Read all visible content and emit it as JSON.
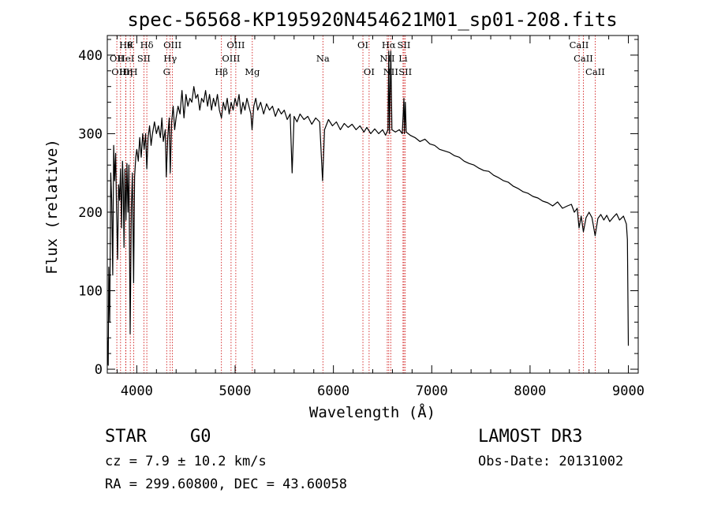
{
  "chart_data": {
    "type": "line",
    "title": "spec-56568-KP195920N454621M01_sp01-208.fits",
    "xlabel": "Wavelength (Å)",
    "ylabel": "Flux (relative)",
    "xlim": [
      3700,
      9100
    ],
    "ylim": [
      -5,
      425
    ],
    "x_ticks": [
      4000,
      5000,
      6000,
      7000,
      8000,
      9000
    ],
    "y_ticks": [
      0,
      100,
      200,
      300,
      400
    ],
    "grid": false,
    "series": [
      {
        "name": "flux",
        "color": "#000000",
        "points": [
          [
            3700,
            40
          ],
          [
            3710,
            5
          ],
          [
            3715,
            130
          ],
          [
            3725,
            60
          ],
          [
            3735,
            250
          ],
          [
            3745,
            215
          ],
          [
            3755,
            120
          ],
          [
            3765,
            285
          ],
          [
            3775,
            240
          ],
          [
            3785,
            275
          ],
          [
            3795,
            200
          ],
          [
            3805,
            140
          ],
          [
            3815,
            235
          ],
          [
            3825,
            215
          ],
          [
            3835,
            255
          ],
          [
            3845,
            180
          ],
          [
            3855,
            265
          ],
          [
            3862,
            235
          ],
          [
            3870,
            155
          ],
          [
            3880,
            255
          ],
          [
            3890,
            190
          ],
          [
            3900,
            262
          ],
          [
            3910,
            200
          ],
          [
            3920,
            260
          ],
          [
            3933,
            45
          ],
          [
            3945,
            205
          ],
          [
            3955,
            250
          ],
          [
            3968,
            110
          ],
          [
            3978,
            245
          ],
          [
            3990,
            270
          ],
          [
            4000,
            280
          ],
          [
            4015,
            265
          ],
          [
            4030,
            295
          ],
          [
            4045,
            270
          ],
          [
            4060,
            300
          ],
          [
            4075,
            280
          ],
          [
            4090,
            300
          ],
          [
            4102,
            255
          ],
          [
            4115,
            295
          ],
          [
            4130,
            310
          ],
          [
            4145,
            285
          ],
          [
            4160,
            300
          ],
          [
            4180,
            315
          ],
          [
            4200,
            300
          ],
          [
            4220,
            310
          ],
          [
            4240,
            295
          ],
          [
            4255,
            320
          ],
          [
            4270,
            290
          ],
          [
            4290,
            305
          ],
          [
            4300,
            245
          ],
          [
            4315,
            295
          ],
          [
            4330,
            320
          ],
          [
            4340,
            250
          ],
          [
            4355,
            315
          ],
          [
            4370,
            335
          ],
          [
            4385,
            305
          ],
          [
            4400,
            320
          ],
          [
            4420,
            335
          ],
          [
            4440,
            325
          ],
          [
            4460,
            355
          ],
          [
            4480,
            320
          ],
          [
            4500,
            350
          ],
          [
            4520,
            335
          ],
          [
            4540,
            345
          ],
          [
            4560,
            340
          ],
          [
            4580,
            360
          ],
          [
            4600,
            345
          ],
          [
            4620,
            350
          ],
          [
            4640,
            330
          ],
          [
            4660,
            345
          ],
          [
            4680,
            340
          ],
          [
            4700,
            355
          ],
          [
            4720,
            335
          ],
          [
            4740,
            350
          ],
          [
            4760,
            330
          ],
          [
            4780,
            345
          ],
          [
            4800,
            335
          ],
          [
            4820,
            350
          ],
          [
            4840,
            330
          ],
          [
            4861,
            320
          ],
          [
            4880,
            340
          ],
          [
            4900,
            330
          ],
          [
            4920,
            345
          ],
          [
            4940,
            325
          ],
          [
            4960,
            340
          ],
          [
            4980,
            330
          ],
          [
            5000,
            345
          ],
          [
            5020,
            335
          ],
          [
            5040,
            350
          ],
          [
            5060,
            325
          ],
          [
            5080,
            340
          ],
          [
            5100,
            330
          ],
          [
            5120,
            345
          ],
          [
            5140,
            335
          ],
          [
            5160,
            325
          ],
          [
            5172,
            305
          ],
          [
            5190,
            335
          ],
          [
            5210,
            345
          ],
          [
            5230,
            330
          ],
          [
            5260,
            340
          ],
          [
            5290,
            325
          ],
          [
            5320,
            338
          ],
          [
            5350,
            330
          ],
          [
            5380,
            335
          ],
          [
            5410,
            322
          ],
          [
            5440,
            332
          ],
          [
            5470,
            325
          ],
          [
            5500,
            330
          ],
          [
            5530,
            318
          ],
          [
            5560,
            325
          ],
          [
            5580,
            250
          ],
          [
            5600,
            322
          ],
          [
            5630,
            315
          ],
          [
            5660,
            325
          ],
          [
            5700,
            318
          ],
          [
            5740,
            322
          ],
          [
            5780,
            312
          ],
          [
            5820,
            320
          ],
          [
            5860,
            315
          ],
          [
            5890,
            240
          ],
          [
            5910,
            305
          ],
          [
            5950,
            318
          ],
          [
            5990,
            310
          ],
          [
            6030,
            315
          ],
          [
            6070,
            305
          ],
          [
            6110,
            313
          ],
          [
            6150,
            308
          ],
          [
            6190,
            312
          ],
          [
            6230,
            305
          ],
          [
            6270,
            310
          ],
          [
            6310,
            302
          ],
          [
            6340,
            308
          ],
          [
            6380,
            300
          ],
          [
            6420,
            306
          ],
          [
            6460,
            300
          ],
          [
            6500,
            305
          ],
          [
            6530,
            298
          ],
          [
            6555,
            305
          ],
          [
            6563,
            405
          ],
          [
            6570,
            300
          ],
          [
            6584,
            405
          ],
          [
            6595,
            305
          ],
          [
            6630,
            302
          ],
          [
            6670,
            305
          ],
          [
            6700,
            300
          ],
          [
            6717,
            345
          ],
          [
            6722,
            300
          ],
          [
            6731,
            340
          ],
          [
            6740,
            302
          ],
          [
            6780,
            298
          ],
          [
            6830,
            295
          ],
          [
            6880,
            290
          ],
          [
            6930,
            293
          ],
          [
            6980,
            287
          ],
          [
            7030,
            285
          ],
          [
            7080,
            280
          ],
          [
            7130,
            278
          ],
          [
            7180,
            276
          ],
          [
            7230,
            272
          ],
          [
            7280,
            270
          ],
          [
            7330,
            265
          ],
          [
            7380,
            262
          ],
          [
            7430,
            260
          ],
          [
            7480,
            256
          ],
          [
            7530,
            253
          ],
          [
            7580,
            252
          ],
          [
            7630,
            247
          ],
          [
            7680,
            244
          ],
          [
            7730,
            240
          ],
          [
            7780,
            238
          ],
          [
            7830,
            233
          ],
          [
            7880,
            230
          ],
          [
            7930,
            226
          ],
          [
            7980,
            224
          ],
          [
            8030,
            220
          ],
          [
            8080,
            218
          ],
          [
            8130,
            214
          ],
          [
            8180,
            212
          ],
          [
            8230,
            208
          ],
          [
            8280,
            213
          ],
          [
            8330,
            205
          ],
          [
            8380,
            208
          ],
          [
            8420,
            210
          ],
          [
            8450,
            200
          ],
          [
            8480,
            205
          ],
          [
            8498,
            180
          ],
          [
            8520,
            195
          ],
          [
            8542,
            175
          ],
          [
            8570,
            193
          ],
          [
            8600,
            200
          ],
          [
            8630,
            193
          ],
          [
            8662,
            170
          ],
          [
            8690,
            192
          ],
          [
            8720,
            197
          ],
          [
            8750,
            190
          ],
          [
            8780,
            196
          ],
          [
            8810,
            188
          ],
          [
            8850,
            194
          ],
          [
            8880,
            198
          ],
          [
            8910,
            190
          ],
          [
            8950,
            195
          ],
          [
            8980,
            185
          ],
          [
            8990,
            165
          ],
          [
            9000,
            30
          ]
        ]
      }
    ],
    "line_markers": [
      {
        "wl": 3797,
        "label": "OII",
        "row": 1
      },
      {
        "wl": 3835,
        "label": "OIII",
        "row": 2
      },
      {
        "wl": 3889,
        "label": "Hθ",
        "row": 0
      },
      {
        "wl": 3889,
        "label": "HeI",
        "row": 1
      },
      {
        "wl": 3889,
        "label": "Hη",
        "row": 2
      },
      {
        "wl": 3934,
        "label": "K",
        "row": 0
      },
      {
        "wl": 3969,
        "label": "H",
        "row": 2
      },
      {
        "wl": 4072,
        "label": "SII",
        "row": 1
      },
      {
        "wl": 4102,
        "label": "Hδ",
        "row": 0
      },
      {
        "wl": 4304,
        "label": "G",
        "row": 2
      },
      {
        "wl": 4340,
        "label": "Hγ",
        "row": 1
      },
      {
        "wl": 4363,
        "label": "OIII",
        "row": 0
      },
      {
        "wl": 4861,
        "label": "Hβ",
        "row": 2
      },
      {
        "wl": 4959,
        "label": "OIII",
        "row": 1
      },
      {
        "wl": 5007,
        "label": "OIII",
        "row": 0
      },
      {
        "wl": 5175,
        "label": "Mg",
        "row": 2
      },
      {
        "wl": 5893,
        "label": "Na",
        "row": 1
      },
      {
        "wl": 6300,
        "label": "OI",
        "row": 0
      },
      {
        "wl": 6363,
        "label": "OI",
        "row": 2
      },
      {
        "wl": 6548,
        "label": "NII",
        "row": 1
      },
      {
        "wl": 6563,
        "label": "Hα",
        "row": 0
      },
      {
        "wl": 6583,
        "label": "NII",
        "row": 2
      },
      {
        "wl": 6708,
        "label": "Li",
        "row": 1
      },
      {
        "wl": 6717,
        "label": "SII",
        "row": 0
      },
      {
        "wl": 6731,
        "label": "SII",
        "row": 2
      },
      {
        "wl": 8498,
        "label": "CaII",
        "row": 0
      },
      {
        "wl": 8542,
        "label": "CaII",
        "row": 1
      },
      {
        "wl": 8662,
        "label": "CaII",
        "row": 2
      }
    ],
    "marker_color": "#cc0000"
  },
  "info": {
    "object_class": "STAR",
    "subclass": "G0",
    "survey": "LAMOST DR3",
    "cz": "cz = 7.9 ± 10.2 km/s",
    "obs_date": "Obs-Date: 20131002",
    "coords": "RA = 299.60800, DEC =  43.60058"
  }
}
